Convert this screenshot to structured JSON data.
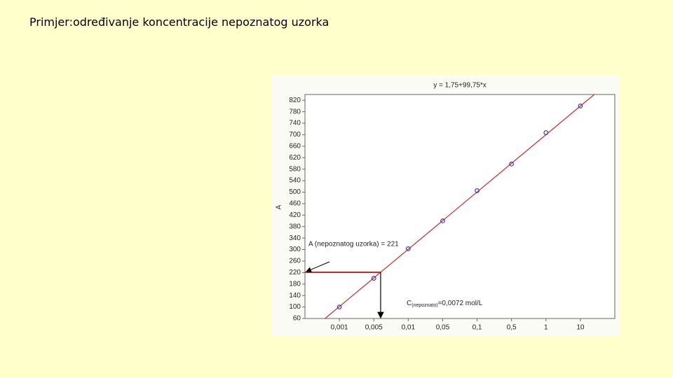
{
  "slide_title": "Primjer:određivanje koncentracije nepoznatog uzorka",
  "chart_data": {
    "type": "scatter",
    "title": "y = 1,75+99,75*x",
    "y_label": "A",
    "categories": [
      "0,001",
      "0,005",
      "0,01",
      "0,05",
      "0,1",
      "0,5",
      "1",
      "10"
    ],
    "series": [
      {
        "name": "A",
        "color": "#3a3ab8",
        "values": [
          100,
          200,
          303,
          400,
          505,
          598,
          707,
          800
        ]
      }
    ],
    "fit": {
      "intercept": 1.75,
      "slope": 99.75,
      "color": "#cc2a2a"
    },
    "ylim": [
      60,
      840
    ],
    "yticks": [
      60,
      100,
      140,
      180,
      220,
      260,
      300,
      340,
      380,
      420,
      460,
      500,
      540,
      580,
      620,
      660,
      700,
      740,
      780,
      820
    ],
    "reference": {
      "value": 221,
      "label": "A (nepoznatog uzorka) = 221"
    },
    "concentration": {
      "symbol": "C",
      "subscript": "(nepoznato)",
      "text": "=0,0072 mol/L"
    }
  }
}
